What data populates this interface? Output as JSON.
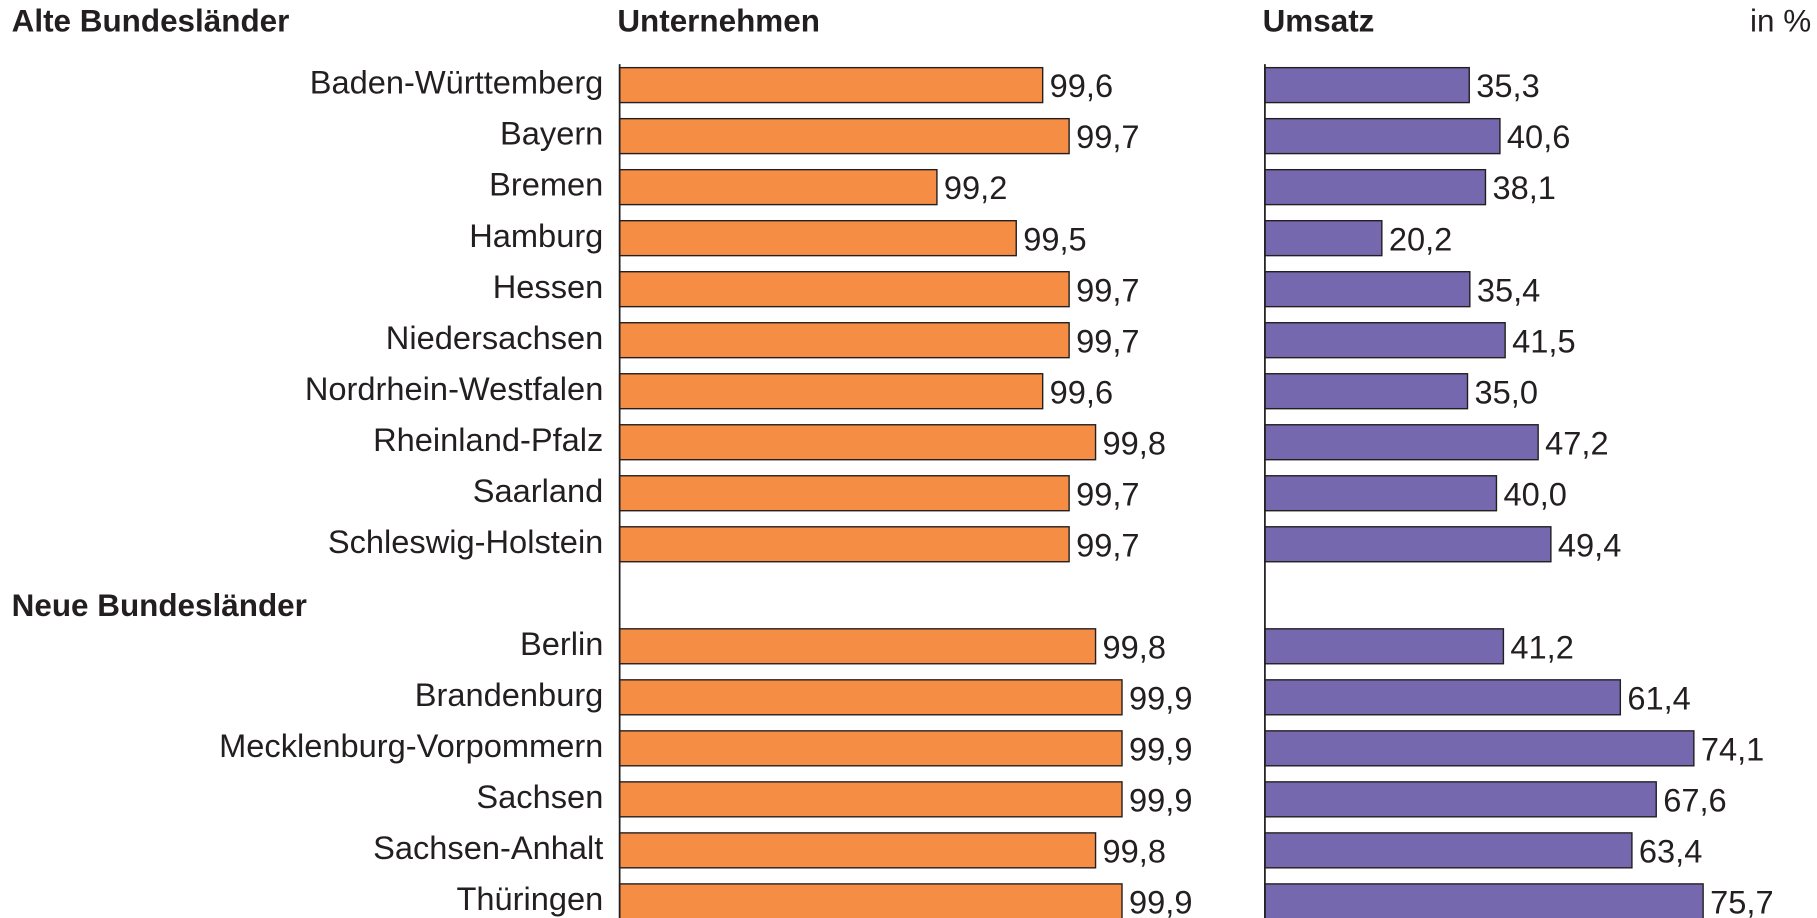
{
  "groups": [
    {
      "name": "Alte Bundesländer",
      "categories": [
        "Baden-Württemberg",
        "Bayern",
        "Bremen",
        "Hamburg",
        "Hessen",
        "Niedersachsen",
        "Nordrhein-Westfalen",
        "Rheinland-Pfalz",
        "Saarland",
        "Schleswig-Holstein"
      ]
    },
    {
      "name": "Neue Bundesländer",
      "categories": [
        "Berlin",
        "Brandenburg",
        "Mecklenburg-Vorpommern",
        "Sachsen",
        "Sachsen-Anhalt",
        "Thüringen"
      ]
    }
  ],
  "unit": "in %",
  "chart_data": [
    {
      "type": "bar",
      "title": "Unternehmen",
      "color": "#f68d45",
      "xlim": [
        98,
        100
      ],
      "values": [
        99.6,
        99.7,
        99.2,
        99.5,
        99.7,
        99.7,
        99.6,
        99.8,
        99.7,
        99.7,
        99.8,
        99.9,
        99.9,
        99.9,
        99.8,
        99.9
      ],
      "value_labels": [
        "99,6",
        "99,7",
        "99,2",
        "99,5",
        "99,7",
        "99,7",
        "99,6",
        "99,8",
        "99,7",
        "99,7",
        "99,8",
        "99,9",
        "99,9",
        "99,9",
        "99,8",
        "99,9"
      ]
    },
    {
      "type": "bar",
      "title": "Umsatz",
      "color": "#7668ae",
      "xlim": [
        0,
        100
      ],
      "values": [
        35.3,
        40.6,
        38.1,
        20.2,
        35.4,
        41.5,
        35.0,
        47.2,
        40.0,
        49.4,
        41.2,
        61.4,
        74.1,
        67.6,
        63.4,
        75.7
      ],
      "value_labels": [
        "35,3",
        "40,6",
        "38,1",
        "20,2",
        "35,4",
        "41,5",
        "35,0",
        "47,2",
        "40,0",
        "49,4",
        "41,2",
        "61,4",
        "74,1",
        "67,6",
        "63,4",
        "75,7"
      ]
    }
  ]
}
